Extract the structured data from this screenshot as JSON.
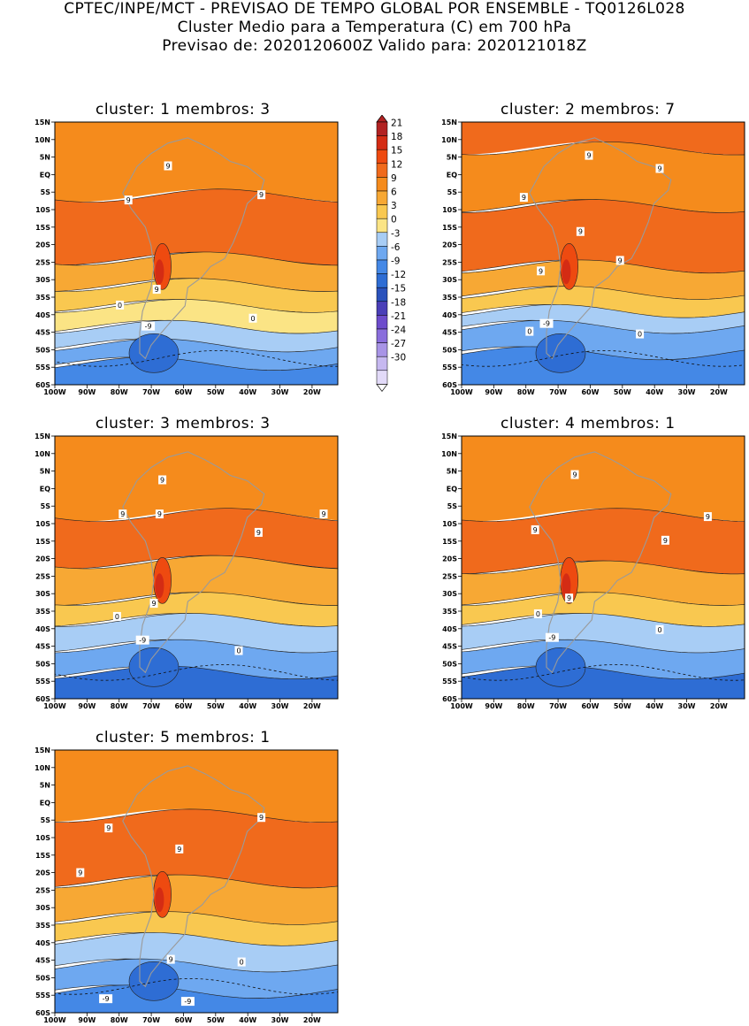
{
  "header": {
    "line1": "CPTEC/INPE/MCT - PREVISAO DE TEMPO GLOBAL POR ENSEMBLE - TQ0126L028",
    "line2": "Cluster Medio para a Temperatura (C) em 700 hPa",
    "line3": "Previsao de: 2020120600Z   Valido para: 2020121018Z"
  },
  "lat_labels": [
    "15N",
    "10N",
    "5N",
    "EQ",
    "5S",
    "10S",
    "15S",
    "20S",
    "25S",
    "30S",
    "35S",
    "40S",
    "45S",
    "50S",
    "55S",
    "60S"
  ],
  "lon_labels": [
    "100W",
    "90W",
    "80W",
    "70W",
    "60W",
    "50W",
    "40W",
    "30W",
    "20W"
  ],
  "colorbar": {
    "levels": [
      "21",
      "18",
      "15",
      "12",
      "9",
      "6",
      "3",
      "0",
      "-3",
      "-6",
      "-9",
      "-12",
      "-15",
      "-18",
      "-21",
      "-24",
      "-27",
      "-30"
    ],
    "colors": [
      "#b22222",
      "#d42c14",
      "#ee4a10",
      "#f06a1c",
      "#f58b1c",
      "#f7a834",
      "#f9c850",
      "#fbe485",
      "#a8cdf5",
      "#6ea8f0",
      "#4488e6",
      "#2e6dd4",
      "#2a52bc",
      "#4a3fb8",
      "#6d4ccc",
      "#8a6edc",
      "#a894e6",
      "#c6b8f0",
      "#e2daf8"
    ]
  },
  "clusters": [
    {
      "title": "cluster: 1   membros: 3",
      "labels": [
        "9",
        "9",
        "9",
        "9",
        "0",
        "0",
        "-9"
      ]
    },
    {
      "title": "cluster: 2   membros: 7",
      "labels": [
        "9",
        "9",
        "9",
        "9",
        "9",
        "9",
        "0",
        "0",
        "-9"
      ]
    },
    {
      "title": "cluster: 3   membros: 3",
      "labels": [
        "9",
        "9",
        "9",
        "9",
        "9",
        "9",
        "0",
        "0",
        "-9"
      ]
    },
    {
      "title": "cluster: 4   membros: 1",
      "labels": [
        "9",
        "9",
        "9",
        "9",
        "9",
        "0",
        "0",
        "-9"
      ]
    },
    {
      "title": "cluster: 5   membros: 1",
      "labels": [
        "9",
        "9",
        "9",
        "9",
        "9",
        "0",
        "-9",
        "-9"
      ]
    }
  ]
}
